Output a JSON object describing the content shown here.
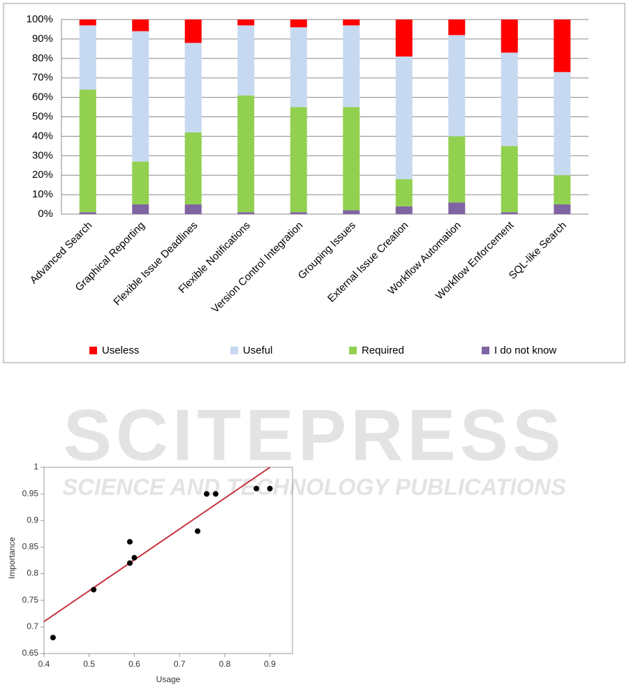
{
  "watermark": {
    "title": "SCITEPRESS",
    "subtitle": "SCIENCE AND TECHNOLOGY PUBLICATIONS"
  },
  "chart_data": [
    {
      "type": "stacked_bar",
      "categories": [
        "Advanced Search",
        "Graphical Reporting",
        "Flexible Issue Deadlines",
        "Flexible Notifications",
        "Version Control Integration",
        "Grouping Issues",
        "External Issue Creation",
        "Workflow Automation",
        "Workflow Enforcement",
        "SQL-like Search"
      ],
      "series": [
        {
          "name": "Useless",
          "color": "#ff0000",
          "values": [
            3,
            6,
            12,
            3,
            4,
            3,
            19,
            8,
            17,
            27
          ]
        },
        {
          "name": "Useful",
          "color": "#c6d9f1",
          "values": [
            33,
            67,
            46,
            36,
            41,
            42,
            63,
            52,
            48,
            53
          ]
        },
        {
          "name": "Required",
          "color": "#92d050",
          "values": [
            63,
            22,
            37,
            60,
            54,
            53,
            14,
            34,
            34,
            15
          ]
        },
        {
          "name": "I do not know",
          "color": "#8064a2",
          "values": [
            1,
            5,
            5,
            1,
            1,
            2,
            4,
            6,
            1,
            5
          ]
        }
      ],
      "ylim": [
        0,
        100
      ],
      "yticks": [
        {
          "value": 0,
          "label": "0%"
        },
        {
          "value": 10,
          "label": "10%"
        },
        {
          "value": 20,
          "label": "20%"
        },
        {
          "value": 30,
          "label": "30%"
        },
        {
          "value": 40,
          "label": "40%"
        },
        {
          "value": 50,
          "label": "50%"
        },
        {
          "value": 60,
          "label": "60%"
        },
        {
          "value": 70,
          "label": "70%"
        },
        {
          "value": 80,
          "label": "80%"
        },
        {
          "value": 90,
          "label": "90%"
        },
        {
          "value": 100,
          "label": "100%"
        }
      ],
      "grid": true,
      "legend": "bottom"
    },
    {
      "type": "scatter",
      "x_label": "Usage",
      "y_label": "Importance",
      "x": [
        0.42,
        0.51,
        0.59,
        0.59,
        0.6,
        0.74,
        0.76,
        0.78,
        0.87,
        0.9
      ],
      "y": [
        0.68,
        0.77,
        0.86,
        0.82,
        0.83,
        0.88,
        0.95,
        0.95,
        0.96,
        0.96
      ],
      "color": "#000000",
      "trendline": {
        "x": [
          0.4,
          0.9
        ],
        "y": [
          0.71,
          1.0
        ],
        "color": "#c8323c"
      },
      "xlim": [
        0.4,
        0.95
      ],
      "xticks": [
        0.4,
        0.5,
        0.6,
        0.7,
        0.8,
        0.9
      ],
      "ylim": [
        0.65,
        1
      ],
      "yticks": [
        0.65,
        0.7,
        0.75,
        0.8,
        0.85,
        0.9,
        0.95,
        1
      ]
    }
  ]
}
